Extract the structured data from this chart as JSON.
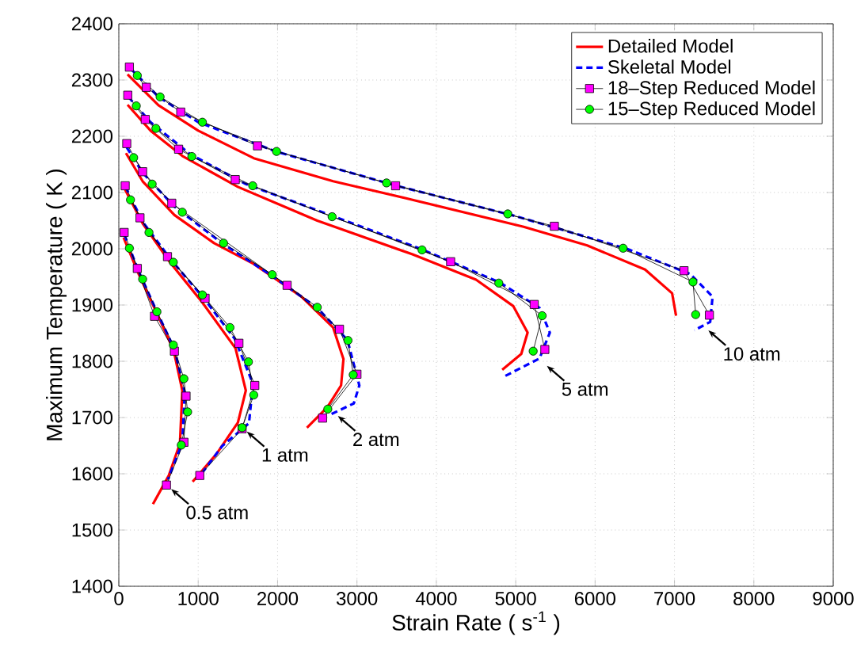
{
  "chart_data": {
    "type": "line",
    "xlabel": "Strain Rate   ( s$^{-1}$ )",
    "ylabel": "Maximum Temperature   ( K )",
    "xlim": [
      0,
      9000
    ],
    "ylim": [
      1400,
      2400
    ],
    "xticks": [
      0,
      1000,
      2000,
      3000,
      4000,
      5000,
      6000,
      7000,
      8000,
      9000
    ],
    "yticks": [
      1400,
      1500,
      1600,
      1700,
      1800,
      1900,
      2000,
      2100,
      2200,
      2300,
      2400
    ],
    "grid": true,
    "legend": "top right",
    "series": [
      {
        "name": "Detailed Model",
        "color": "#ff0000",
        "marker": "none",
        "line_style": "solid",
        "x": [
          110,
          500,
          1000,
          1700,
          2700,
          3700,
          5100,
          5900,
          6630,
          6970,
          7020
        ],
        "values": [
          2310,
          2255,
          2210,
          2161,
          2120,
          2087,
          2039,
          2006,
          1963,
          1921,
          1881
        ]
      },
      {
        "name": "Skeletal Model",
        "color": "#0000ff",
        "marker": "none",
        "line_style": "dashed",
        "x": [
          150,
          500,
          1000,
          2000,
          3500,
          5000,
          6400,
          7200,
          7480,
          7450,
          7250
        ],
        "values": [
          2320,
          2270,
          2225,
          2172,
          2112,
          2058,
          2000,
          1955,
          1915,
          1870,
          1855
        ]
      },
      {
        "name": "18–Step Reduced Model",
        "color": "#ff00ff",
        "marker": "square",
        "line_style": "solid",
        "x": [
          133,
          347,
          780,
          1747,
          3487,
          5487,
          7120,
          7440
        ],
        "values": [
          2323,
          2287,
          2243,
          2183,
          2112,
          2040,
          1961,
          1882
        ]
      },
      {
        "name": "15–Step Reduced Model",
        "color": "#00ff00",
        "marker": "circle",
        "line_style": "solid",
        "x": [
          233,
          520,
          1053,
          1987,
          3373,
          4900,
          6353,
          7233,
          7267
        ],
        "values": [
          2308,
          2270,
          2225,
          2173,
          2117,
          2062,
          2001,
          1941,
          1883
        ]
      },
      {
        "color": "#ff0000",
        "marker": "none",
        "line_style": "solid",
        "x": [
          110,
          400,
          800,
          1500,
          2500,
          3700,
          4500,
          4970,
          5150,
          5070,
          4830
        ],
        "values": [
          2256,
          2210,
          2165,
          2110,
          2050,
          1990,
          1945,
          1898,
          1851,
          1813,
          1785
        ]
      },
      {
        "color": "#0000ff",
        "marker": "none",
        "line_style": "dashed",
        "x": [
          120,
          400,
          900,
          1600,
          2700,
          3800,
          4800,
          5300,
          5430,
          5300,
          4870
        ],
        "values": [
          2270,
          2225,
          2168,
          2115,
          2058,
          2000,
          1940,
          1895,
          1851,
          1805,
          1774
        ]
      },
      {
        "color": "#ff00ff",
        "marker": "square",
        "line_style": "solid",
        "x": [
          113,
          333,
          753,
          1467,
          4180,
          5233,
          5367
        ],
        "values": [
          2273,
          2230,
          2177,
          2123,
          1977,
          1901,
          1821
        ]
      },
      {
        "color": "#00ff00",
        "marker": "circle",
        "line_style": "solid",
        "x": [
          220,
          467,
          920,
          1687,
          2687,
          3820,
          4787,
          5333,
          5220
        ],
        "values": [
          2254,
          2214,
          2164,
          2112,
          2057,
          1998,
          1939,
          1881,
          1818
        ]
      },
      {
        "color": "#ff0000",
        "marker": "none",
        "line_style": "solid",
        "x": [
          90,
          300,
          700,
          1200,
          1700,
          2300,
          2700,
          2830,
          2800,
          2630,
          2370
        ],
        "values": [
          2170,
          2120,
          2060,
          2010,
          1973,
          1915,
          1860,
          1804,
          1757,
          1719,
          1682
        ]
      },
      {
        "color": "#0000ff",
        "marker": "none",
        "line_style": "dashed",
        "x": [
          100,
          300,
          700,
          1300,
          1930,
          2500,
          2880,
          3030,
          2960,
          2660
        ],
        "values": [
          2180,
          2135,
          2075,
          2010,
          1952,
          1895,
          1838,
          1757,
          1725,
          1705
        ]
      },
      {
        "color": "#ff00ff",
        "marker": "square",
        "line_style": "solid",
        "x": [
          100,
          300,
          667,
          2120,
          2780,
          3000,
          2567
        ],
        "values": [
          2187,
          2137,
          2081,
          1935,
          1857,
          1777,
          1699
        ]
      },
      {
        "color": "#00ff00",
        "marker": "circle",
        "line_style": "solid",
        "x": [
          187,
          420,
          800,
          1320,
          1933,
          2500,
          2887,
          2953,
          2633
        ],
        "values": [
          2162,
          2115,
          2065,
          2010,
          1954,
          1896,
          1837,
          1776,
          1715
        ]
      },
      {
        "color": "#ff0000",
        "marker": "none",
        "line_style": "solid",
        "x": [
          80,
          300,
          650,
          1050,
          1470,
          1600,
          1500,
          1230,
          930
        ],
        "values": [
          2105,
          2045,
          1975,
          1905,
          1823,
          1748,
          1691,
          1635,
          1586
        ]
      },
      {
        "color": "#0000ff",
        "marker": "none",
        "line_style": "dashed",
        "x": [
          85,
          300,
          660,
          1070,
          1460,
          1690,
          1640,
          1300,
          1000
        ],
        "values": [
          2110,
          2048,
          1980,
          1912,
          1840,
          1760,
          1690,
          1649,
          1592
        ]
      },
      {
        "color": "#ff00ff",
        "marker": "square",
        "line_style": "solid",
        "x": [
          80,
          267,
          613,
          1087,
          1513,
          1713,
          1553,
          1020
        ],
        "values": [
          2112,
          2055,
          1986,
          1912,
          1832,
          1757,
          1680,
          1597
        ]
      },
      {
        "color": "#00ff00",
        "marker": "circle",
        "line_style": "solid",
        "x": [
          147,
          380,
          687,
          1053,
          1400,
          1633,
          1700,
          1553
        ],
        "values": [
          2087,
          2029,
          1976,
          1918,
          1860,
          1799,
          1740,
          1682
        ]
      },
      {
        "color": "#ff0000",
        "marker": "none",
        "line_style": "solid",
        "x": [
          60,
          250,
          480,
          690,
          800,
          770,
          630,
          430
        ],
        "values": [
          2020,
          1955,
          1885,
          1820,
          1748,
          1654,
          1597,
          1546
        ]
      },
      {
        "color": "#0000ff",
        "marker": "none",
        "line_style": "dashed",
        "x": [
          70,
          250,
          480,
          700,
          830,
          800,
          620
        ],
        "values": [
          2025,
          1960,
          1888,
          1822,
          1745,
          1655,
          1590
        ]
      },
      {
        "color": "#ff00ff",
        "marker": "square",
        "line_style": "solid",
        "x": [
          67,
          233,
          450,
          700,
          847,
          820,
          600
        ],
        "values": [
          2029,
          1965,
          1880,
          1818,
          1738,
          1656,
          1580
        ]
      },
      {
        "color": "#00ff00",
        "marker": "circle",
        "line_style": "solid",
        "x": [
          133,
          300,
          480,
          687,
          820,
          867,
          787
        ],
        "values": [
          2001,
          1946,
          1888,
          1829,
          1769,
          1710,
          1651
        ]
      }
    ],
    "annotations": [
      {
        "text": "0.5 atm",
        "x": 600,
        "y": 1580
      },
      {
        "text": "1 atm",
        "x": 1553,
        "y": 1682
      },
      {
        "text": "2 atm",
        "x": 2700,
        "y": 1710
      },
      {
        "text": "5 atm",
        "x": 5333,
        "y": 1799
      },
      {
        "text": "10 atm",
        "x": 7367,
        "y": 1862
      }
    ]
  }
}
